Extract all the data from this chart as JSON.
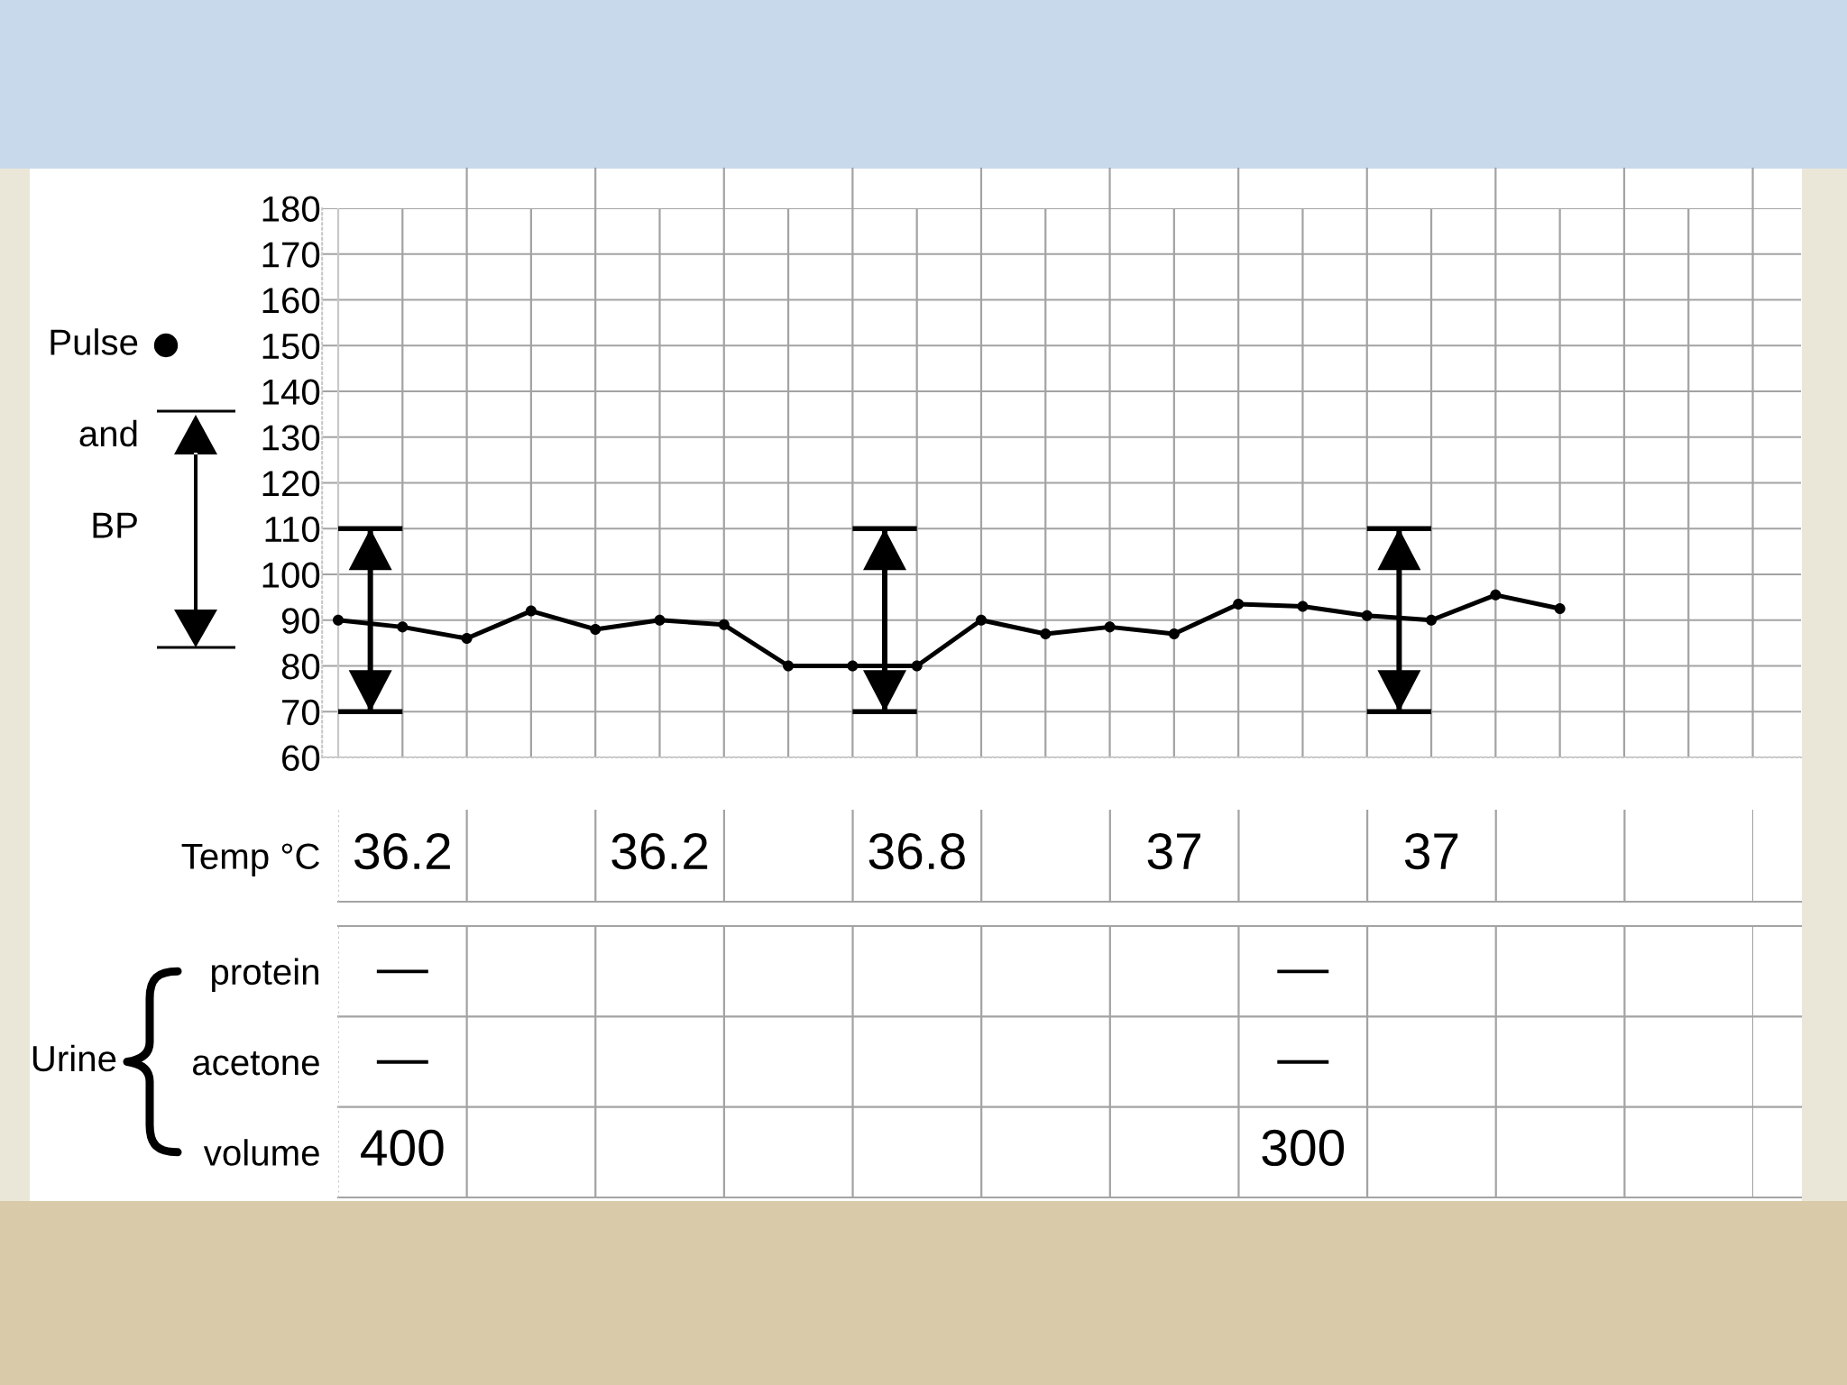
{
  "chart_data": [
    {
      "type": "line",
      "categories": [
        null,
        null,
        null,
        null,
        null,
        null,
        null,
        null,
        null,
        null,
        null,
        null,
        null,
        null,
        null,
        null,
        null,
        null,
        null,
        null,
        null,
        null,
        null,
        null,
        null,
        null,
        null,
        null,
        null,
        null,
        null,
        null,
        null,
        null,
        null,
        null,
        null,
        null,
        null,
        null,
        null,
        null,
        null,
        null,
        null,
        null
      ],
      "series": [
        {
          "name": "Pulse",
          "color": "#000000",
          "values": [
            90,
            null,
            88.5,
            null,
            86,
            null,
            92,
            null,
            88,
            null,
            90,
            null,
            89,
            null,
            80,
            null,
            80,
            null,
            80,
            null,
            90,
            null,
            87,
            null,
            88.5,
            null,
            87,
            null,
            93.5,
            null,
            93,
            null,
            91,
            null,
            90,
            null,
            95.5,
            null,
            92.5,
            null,
            null,
            null,
            null,
            null,
            null,
            null
          ]
        },
        {
          "name": "BP",
          "type": "bar",
          "color": "#000000",
          "base": [
            null,
            70,
            null,
            null,
            null,
            null,
            null,
            null,
            null,
            null,
            null,
            null,
            null,
            null,
            null,
            null,
            null,
            70,
            null,
            null,
            null,
            null,
            null,
            null,
            null,
            null,
            null,
            null,
            null,
            null,
            null,
            null,
            null,
            70,
            null,
            null,
            null,
            null,
            null,
            null,
            null,
            null,
            null,
            null,
            null,
            null
          ],
          "values": [
            null,
            40,
            null,
            null,
            null,
            null,
            null,
            null,
            null,
            null,
            null,
            null,
            null,
            null,
            null,
            null,
            null,
            40,
            null,
            null,
            null,
            null,
            null,
            null,
            null,
            null,
            null,
            null,
            null,
            null,
            null,
            null,
            null,
            40,
            null,
            null,
            null,
            null,
            null,
            null,
            null,
            null,
            null,
            null,
            null,
            null
          ]
        }
      ],
      "ylim": [
        60,
        180
      ],
      "yticks": [
        60,
        70,
        80,
        90,
        100,
        110,
        120,
        130,
        140,
        150,
        160,
        170,
        180
      ],
      "grid": true,
      "legend": "left",
      "marker": "circle",
      "tick_labels": "y",
      "annotations": [
        "and"
      ]
    },
    {
      "type": "heatmap",
      "data_labels": true,
      "categories": [
        null,
        null,
        null,
        null,
        null,
        null,
        null,
        null,
        null,
        null,
        null
      ],
      "y_categories": [
        "Temp °C"
      ],
      "cells": [
        [
          36.2,
          null,
          36.2,
          null,
          36.8,
          null,
          37,
          null,
          37,
          null,
          null
        ]
      ]
    },
    {
      "type": "heatmap",
      "data_labels": true,
      "ylabel": "Urine",
      "categories": [
        null,
        null,
        null,
        null,
        null,
        null,
        null,
        null,
        null,
        null,
        null
      ],
      "y_categories": [
        "protein",
        "acetone",
        "volume"
      ],
      "cells": [
        [
          null,
          null,
          null,
          null,
          null,
          null,
          null,
          null,
          null,
          null,
          null
        ],
        [
          null,
          null,
          null,
          null,
          null,
          null,
          null,
          null,
          null,
          null,
          null
        ],
        [
          400,
          null,
          null,
          null,
          null,
          null,
          null,
          300,
          null,
          null,
          null
        ]
      ],
      "cell_labels": [
        [
          "—",
          null,
          null,
          null,
          null,
          null,
          null,
          "—",
          null,
          null,
          null
        ],
        [
          "—",
          null,
          null,
          null,
          null,
          null,
          null,
          "—",
          null,
          null,
          null
        ],
        [
          "400",
          null,
          null,
          null,
          null,
          null,
          null,
          "300",
          null,
          null,
          null
        ]
      ]
    }
  ]
}
